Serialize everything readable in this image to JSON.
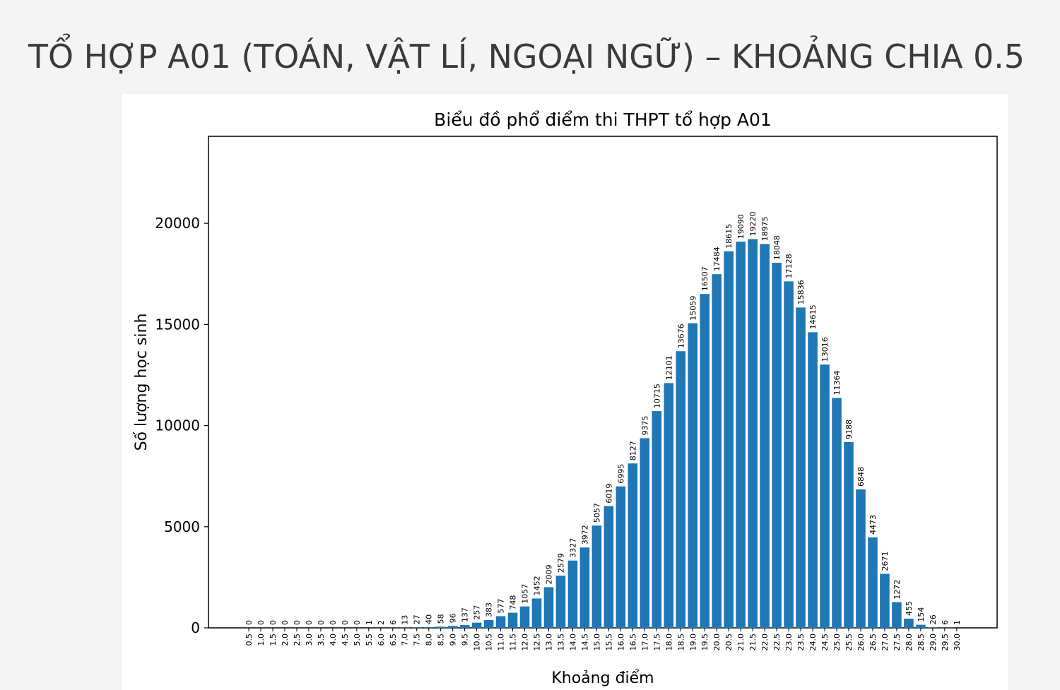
{
  "slide_title": "TỔ HỢP A01 (TOÁN, VẬT LÍ, NGOẠI NGỮ) – KHOẢNG CHIA 0.5",
  "chart_data": {
    "type": "bar",
    "title": "Biểu đồ phổ điểm thi THPT tổ hợp A01",
    "x_label": "Khoảng điểm",
    "y_label": "Số lượng học sinh",
    "categories": [
      "0.5",
      "1.0",
      "1.5",
      "2.0",
      "2.5",
      "3.0",
      "3.5",
      "4.0",
      "4.5",
      "5.0",
      "5.5",
      "6.0",
      "6.5",
      "7.0",
      "7.5",
      "8.0",
      "8.5",
      "9.0",
      "9.5",
      "10.0",
      "10.5",
      "11.0",
      "11.5",
      "12.0",
      "12.5",
      "13.0",
      "13.5",
      "14.0",
      "14.5",
      "15.0",
      "15.5",
      "16.0",
      "16.5",
      "17.0",
      "17.5",
      "18.0",
      "18.5",
      "19.0",
      "19.5",
      "20.0",
      "20.5",
      "21.0",
      "21.5",
      "22.0",
      "22.5",
      "23.0",
      "23.5",
      "24.0",
      "24.5",
      "25.0",
      "25.5",
      "26.0",
      "26.5",
      "27.0",
      "27.5",
      "28.0",
      "28.5",
      "29.0",
      "29.5",
      "30.0"
    ],
    "values": [
      0,
      0,
      0,
      0,
      0,
      0,
      0,
      0,
      0,
      0,
      1,
      2,
      6,
      13,
      27,
      40,
      58,
      96,
      137,
      257,
      383,
      577,
      748,
      1057,
      1452,
      2009,
      2579,
      3327,
      3972,
      5057,
      6019,
      6995,
      8127,
      9375,
      10715,
      12101,
      13676,
      15059,
      16507,
      17484,
      18615,
      19090,
      19220,
      18975,
      18048,
      17128,
      15836,
      14615,
      13016,
      11364,
      9188,
      6848,
      4473,
      2671,
      1272,
      455,
      154,
      26,
      6,
      1
    ],
    "color": "#1f77b4",
    "ylim": [
      0,
      24300
    ],
    "yticks": [
      0,
      5000,
      10000,
      15000,
      20000
    ],
    "data_labels": true
  }
}
